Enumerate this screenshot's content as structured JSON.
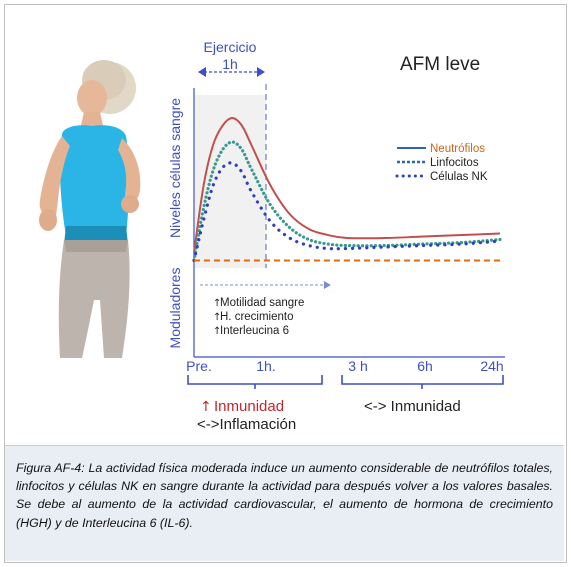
{
  "chart_data": {
    "type": "line",
    "title": "AFM leve",
    "xlabel": "",
    "ylabel": "Niveles células sangre",
    "lower_ylabel": "Moduladores",
    "x_ticks": [
      "Pre.",
      "1h.",
      "3 h",
      "6h",
      "24h"
    ],
    "exercise_label": "Ejercicio",
    "exercise_duration": "1h",
    "grid": false,
    "legend_position": "right",
    "series": [
      {
        "name": "Neutrófilos",
        "color": "#c0504d",
        "legend_color": "#2e63b8",
        "legend_text_color": "#d0641a",
        "style": "solid",
        "x": [
          0,
          0.25,
          0.5,
          0.75,
          1,
          1.25,
          1.5,
          2,
          2.5,
          3,
          3.5,
          4,
          5,
          6,
          7,
          8
        ],
        "y": [
          0.1,
          0.55,
          0.82,
          0.95,
          1.0,
          0.95,
          0.82,
          0.55,
          0.36,
          0.26,
          0.22,
          0.2,
          0.2,
          0.21,
          0.22,
          0.23
        ]
      },
      {
        "name": "Linfocitos",
        "color": "#3a9a8e",
        "legend_color": "#2e63b8",
        "style": "dotted",
        "x": [
          0,
          0.25,
          0.5,
          0.75,
          1,
          1.25,
          1.5,
          2,
          2.5,
          3,
          3.5,
          4,
          5,
          6,
          7,
          8
        ],
        "y": [
          0.05,
          0.4,
          0.65,
          0.79,
          0.84,
          0.79,
          0.66,
          0.42,
          0.27,
          0.19,
          0.16,
          0.15,
          0.15,
          0.16,
          0.17,
          0.19
        ]
      },
      {
        "name": "Células NK",
        "color": "#2f3fbf",
        "legend_color": "#2f3fbf",
        "style": "dots",
        "x": [
          0,
          0.25,
          0.5,
          0.75,
          1,
          1.25,
          1.5,
          2,
          2.5,
          3,
          3.5,
          4,
          5,
          6,
          7,
          8
        ],
        "y": [
          0.05,
          0.32,
          0.55,
          0.67,
          0.7,
          0.64,
          0.51,
          0.31,
          0.2,
          0.15,
          0.13,
          0.13,
          0.14,
          0.15,
          0.16,
          0.18
        ]
      },
      {
        "name": "",
        "color": "#e46c0a",
        "style": "dashed",
        "x": [
          0,
          8
        ],
        "y": [
          0.05,
          0.05
        ]
      }
    ],
    "modulators": {
      "items": [
        "Motilidad sangre",
        "H.  crecimiento",
        "Interleucina 6"
      ],
      "arrow": "↑"
    },
    "phases": [
      {
        "arrow": "↑",
        "line1": "Inmunidad",
        "line2": "<->Inflamación"
      },
      {
        "line1": "<-> Inmunidad"
      }
    ]
  },
  "caption": "Figura  AF-4: La actividad física moderada  induce un aumento considerable de neutrófilos totales, linfocitos y células NK   en  sangre durante la actividad para después volver a los valores basales. Se debe al aumento de la actividad cardiovascular, el aumento de hormona de crecimiento (HGH) y de  Interleucina 6 (IL-6).",
  "colors": {
    "axis": "#3f4fc4",
    "caption_bg": "#e9edf4",
    "shade": "#f1f1f1"
  }
}
